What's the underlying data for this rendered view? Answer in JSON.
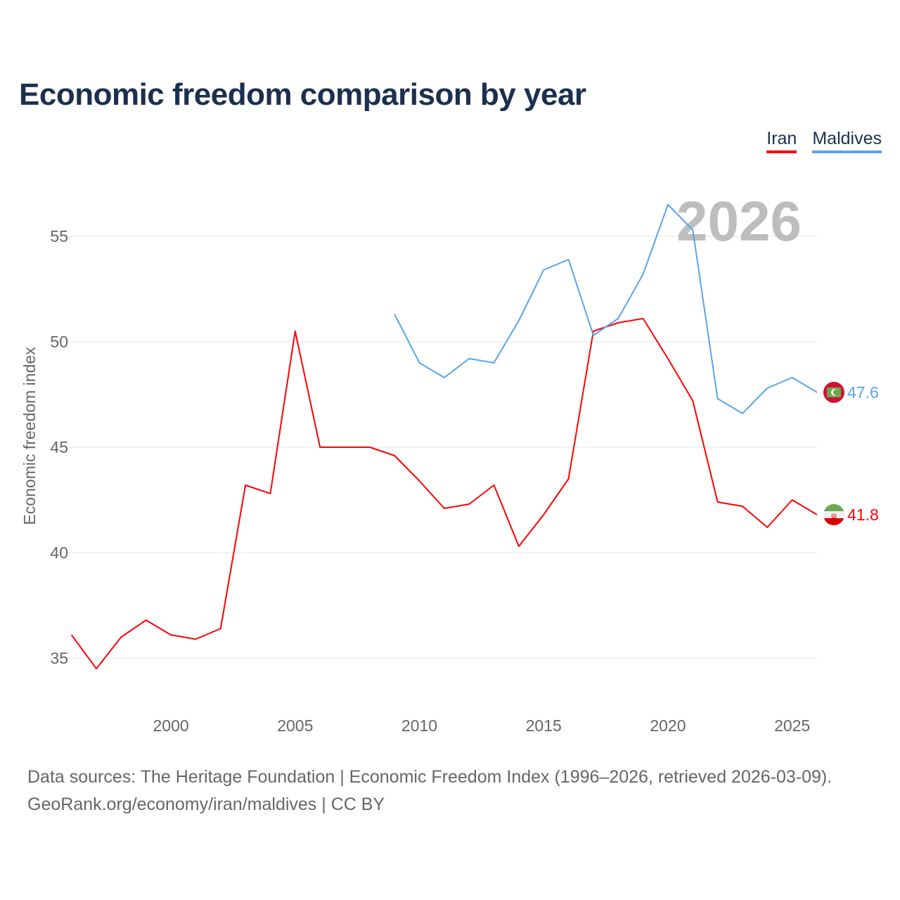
{
  "title": "Economic freedom comparison by year",
  "legend": [
    {
      "name": "Iran",
      "color": "#ff0000"
    },
    {
      "name": "Maldives",
      "color": "#5aa5e8"
    }
  ],
  "current_year_label": "2026",
  "footer": {
    "line1": "Data sources: The Heritage Foundation | Economic Freedom Index (1996–2026, retrieved 2026-03-09).",
    "line2": "GeoRank.org/economy/iran/maldives | CC BY"
  },
  "chart_data": {
    "type": "line",
    "title": "Economic freedom comparison by year",
    "xlabel": "",
    "ylabel": "Economic freedom index",
    "xlim": [
      1996,
      2026
    ],
    "ylim": [
      32.5,
      57.5
    ],
    "xticks": [
      2000,
      2005,
      2010,
      2015,
      2020,
      2025
    ],
    "yticks": [
      35,
      40,
      45,
      50,
      55
    ],
    "grid": true,
    "legend_position": "top-right",
    "series": [
      {
        "name": "Iran",
        "color": "#ff0000",
        "end_label": "41.8",
        "x": [
          1996,
          1997,
          1998,
          1999,
          2000,
          2001,
          2002,
          2003,
          2004,
          2005,
          2006,
          2007,
          2008,
          2009,
          2010,
          2011,
          2012,
          2013,
          2014,
          2015,
          2016,
          2017,
          2018,
          2019,
          2020,
          2021,
          2022,
          2023,
          2024,
          2025,
          2026
        ],
        "values": [
          36.1,
          34.5,
          36.0,
          36.8,
          36.1,
          35.9,
          36.4,
          43.2,
          42.8,
          50.5,
          45.0,
          45.0,
          45.0,
          44.6,
          43.4,
          42.1,
          42.3,
          43.2,
          40.3,
          41.8,
          43.5,
          50.5,
          50.9,
          51.1,
          49.2,
          47.2,
          42.4,
          42.2,
          41.2,
          42.5,
          41.8
        ]
      },
      {
        "name": "Maldives",
        "color": "#5aa5e8",
        "end_label": "47.6",
        "x": [
          2009,
          2010,
          2011,
          2012,
          2013,
          2014,
          2015,
          2016,
          2017,
          2018,
          2019,
          2020,
          2021,
          2022,
          2023,
          2024,
          2025,
          2026
        ],
        "values": [
          51.3,
          49.0,
          48.3,
          49.2,
          49.0,
          51.0,
          53.4,
          53.9,
          50.3,
          51.1,
          53.2,
          56.5,
          55.3,
          47.3,
          46.6,
          47.8,
          48.3,
          47.6
        ]
      }
    ]
  }
}
